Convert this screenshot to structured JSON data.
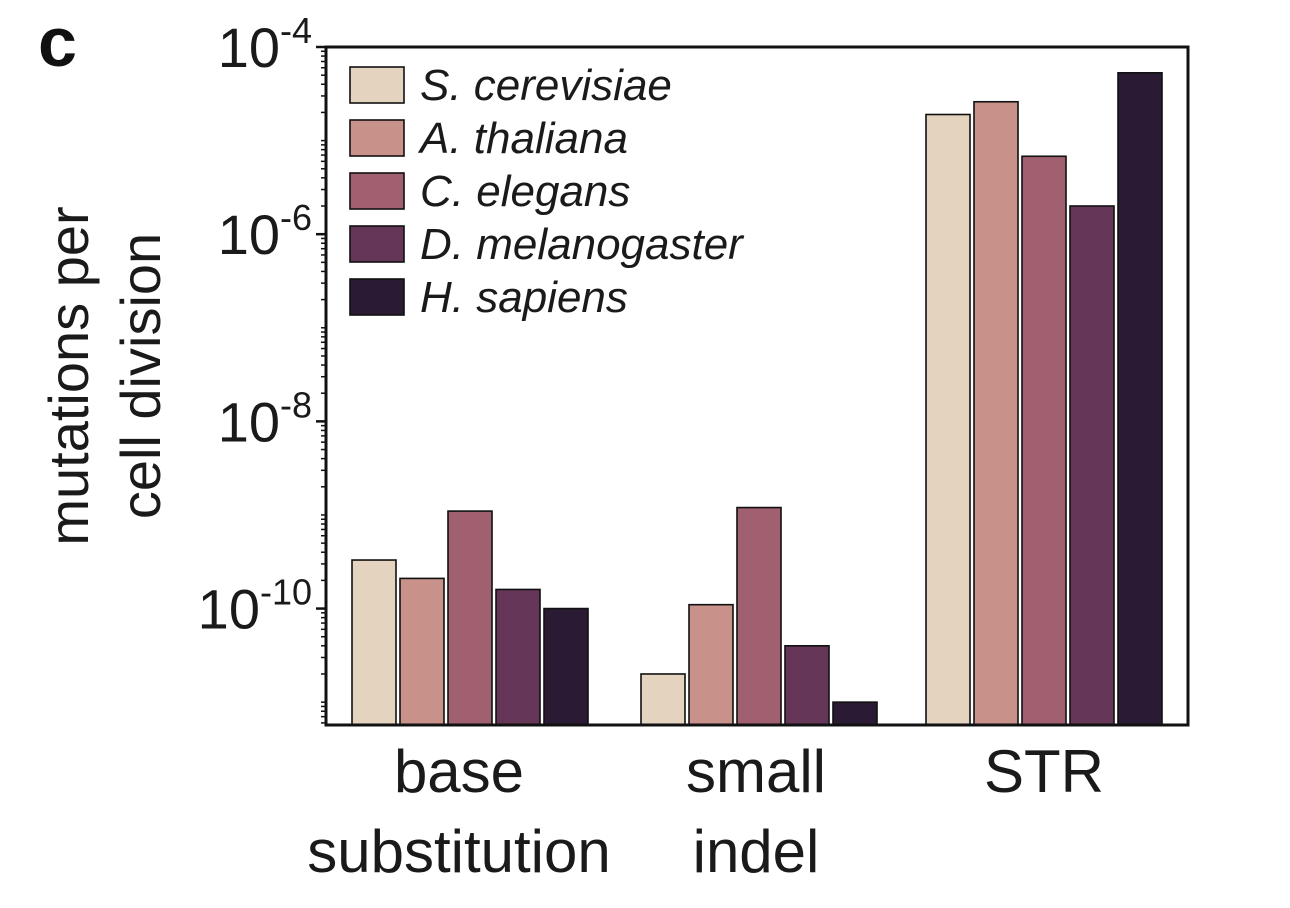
{
  "panel_label": "c",
  "chart_data": {
    "type": "bar",
    "title": "",
    "ylabel_lines": [
      "mutations per",
      "cell division"
    ],
    "xlabel": "",
    "yscale": "log",
    "ylim": [
      5.7e-12,
      0.0001
    ],
    "y_ticks": [
      {
        "value": 0.0001,
        "base": "10",
        "exp": "-4"
      },
      {
        "value": 1e-06,
        "base": "10",
        "exp": "-6"
      },
      {
        "value": 1e-08,
        "base": "10",
        "exp": "-8"
      },
      {
        "value": 1e-10,
        "base": "10",
        "exp": "-10"
      }
    ],
    "categories": [
      {
        "lines": [
          "base",
          "substitution"
        ]
      },
      {
        "lines": [
          "small",
          "indel"
        ]
      },
      {
        "lines": [
          "STR"
        ]
      }
    ],
    "series": [
      {
        "name": "S. cerevisiae",
        "color": "#e3d3bf",
        "values": [
          3.3e-10,
          2e-11,
          1.9e-05
        ]
      },
      {
        "name": "A. thaliana",
        "color": "#c8928a",
        "values": [
          2.1e-10,
          1.1e-10,
          2.6e-05
        ]
      },
      {
        "name": "C. elegans",
        "color": "#a06070",
        "values": [
          1.1e-09,
          1.2e-09,
          6.8e-06
        ]
      },
      {
        "name": "D. melanogaster",
        "color": "#663659",
        "values": [
          1.6e-10,
          4e-11,
          2e-06
        ]
      },
      {
        "name": "H. sapiens",
        "color": "#2a1a33",
        "values": [
          1e-10,
          1e-11,
          5.3e-05
        ]
      }
    ],
    "legend_position": "top-left",
    "grid": false
  }
}
